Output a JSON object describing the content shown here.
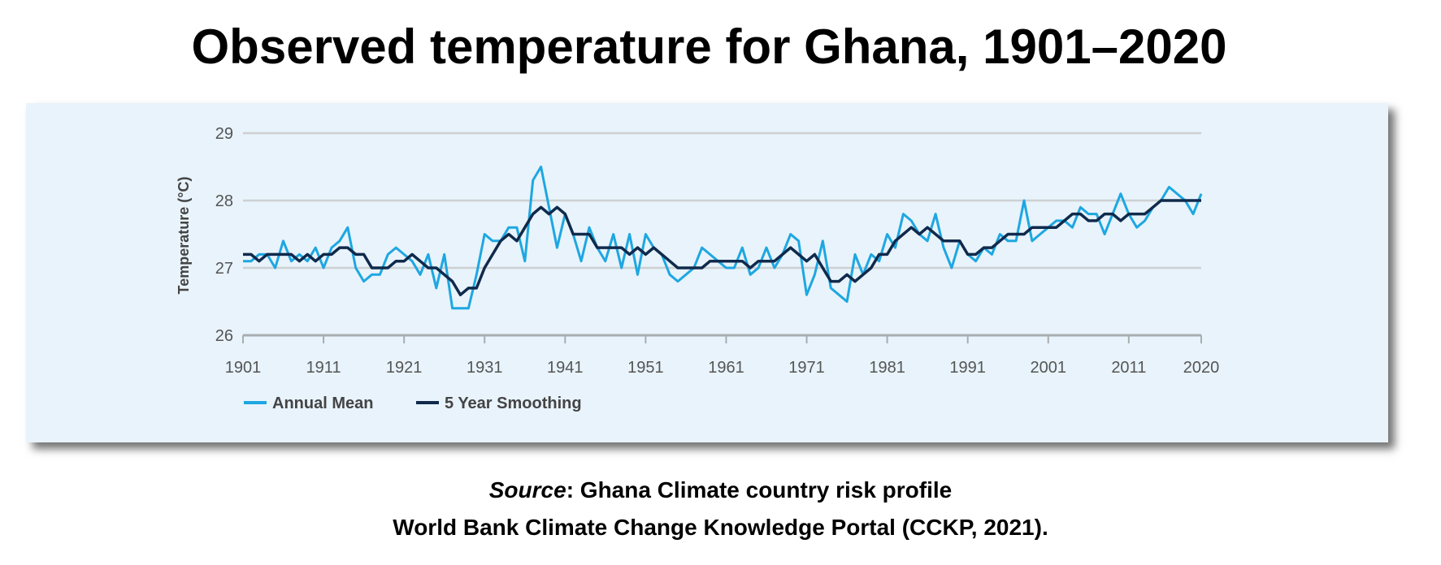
{
  "title": "Observed temperature for Ghana, 1901–2020",
  "source": {
    "label": "Source",
    "line1_rest": ": Ghana Climate country risk profile",
    "line2": "World Bank Climate Change Knowledge Portal (CCKP, 2021)."
  },
  "chart_data": {
    "type": "line",
    "title": "",
    "xlabel": "",
    "ylabel": "Temperature (°C)",
    "xlim": [
      1901,
      2020
    ],
    "ylim": [
      26,
      29
    ],
    "x_ticks": [
      "1901",
      "1911",
      "1921",
      "1931",
      "1941",
      "1951",
      "1961",
      "1971",
      "1981",
      "1991",
      "2001",
      "2011",
      "2020"
    ],
    "y_ticks": [
      "26",
      "27",
      "28",
      "29"
    ],
    "grid": "horizontal",
    "legend_position": "bottom-left",
    "x_start": 1901,
    "series": [
      {
        "name": "Annual Mean",
        "color": "#1ea7e1",
        "values": [
          27.1,
          27.1,
          27.2,
          27.2,
          27.0,
          27.4,
          27.1,
          27.2,
          27.1,
          27.3,
          27.0,
          27.3,
          27.4,
          27.6,
          27.0,
          26.8,
          26.9,
          26.9,
          27.2,
          27.3,
          27.2,
          27.1,
          26.9,
          27.2,
          26.7,
          27.2,
          26.4,
          26.4,
          26.4,
          26.9,
          27.5,
          27.4,
          27.4,
          27.6,
          27.6,
          27.1,
          28.3,
          28.5,
          27.9,
          27.3,
          27.8,
          27.5,
          27.1,
          27.6,
          27.3,
          27.1,
          27.5,
          27.0,
          27.5,
          26.9,
          27.5,
          27.3,
          27.2,
          26.9,
          26.8,
          26.9,
          27.0,
          27.3,
          27.2,
          27.1,
          27.0,
          27.0,
          27.3,
          26.9,
          27.0,
          27.3,
          27.0,
          27.2,
          27.5,
          27.4,
          26.6,
          26.9,
          27.4,
          26.7,
          26.6,
          26.5,
          27.2,
          26.9,
          27.2,
          27.1,
          27.5,
          27.3,
          27.8,
          27.7,
          27.5,
          27.4,
          27.8,
          27.3,
          27.0,
          27.4,
          27.2,
          27.1,
          27.3,
          27.2,
          27.5,
          27.4,
          27.4,
          28.0,
          27.4,
          27.5,
          27.6,
          27.7,
          27.7,
          27.6,
          27.9,
          27.8,
          27.8,
          27.5,
          27.8,
          28.1,
          27.8,
          27.6,
          27.7,
          27.9,
          28.0,
          28.2,
          28.1,
          28.0,
          27.8,
          28.1
        ]
      },
      {
        "name": "5 Year Smoothing",
        "color": "#102a4c",
        "values": [
          27.2,
          27.2,
          27.1,
          27.2,
          27.2,
          27.2,
          27.2,
          27.1,
          27.2,
          27.1,
          27.2,
          27.2,
          27.3,
          27.3,
          27.2,
          27.2,
          27.0,
          27.0,
          27.0,
          27.1,
          27.1,
          27.2,
          27.1,
          27.0,
          27.0,
          26.9,
          26.8,
          26.6,
          26.7,
          26.7,
          27.0,
          27.2,
          27.4,
          27.5,
          27.4,
          27.6,
          27.8,
          27.9,
          27.8,
          27.9,
          27.8,
          27.5,
          27.5,
          27.5,
          27.3,
          27.3,
          27.3,
          27.3,
          27.2,
          27.3,
          27.2,
          27.3,
          27.2,
          27.1,
          27.0,
          27.0,
          27.0,
          27.0,
          27.1,
          27.1,
          27.1,
          27.1,
          27.1,
          27.0,
          27.1,
          27.1,
          27.1,
          27.2,
          27.3,
          27.2,
          27.1,
          27.2,
          27.0,
          26.8,
          26.8,
          26.9,
          26.8,
          26.9,
          27.0,
          27.2,
          27.2,
          27.4,
          27.5,
          27.6,
          27.5,
          27.6,
          27.5,
          27.4,
          27.4,
          27.4,
          27.2,
          27.2,
          27.3,
          27.3,
          27.4,
          27.5,
          27.5,
          27.5,
          27.6,
          27.6,
          27.6,
          27.6,
          27.7,
          27.8,
          27.8,
          27.7,
          27.7,
          27.8,
          27.8,
          27.7,
          27.8,
          27.8,
          27.8,
          27.9,
          28.0,
          28.0,
          28.0,
          28.0,
          28.0,
          28.0
        ]
      }
    ]
  }
}
